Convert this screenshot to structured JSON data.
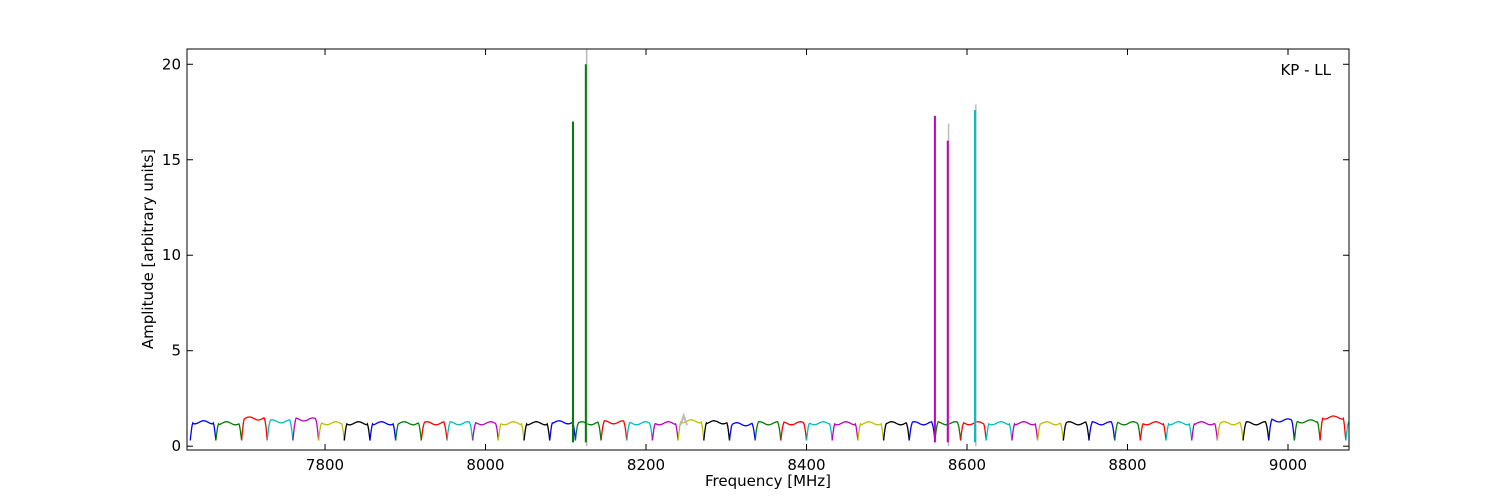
{
  "chart_data": {
    "type": "line",
    "title": "",
    "annotation": "KP - LL",
    "xlabel": "Frequency [MHz]",
    "ylabel": "Amplitude [arbitrary units]",
    "xlim": [
      7628,
      9076
    ],
    "ylim": [
      -0.2,
      20.8
    ],
    "xticks": [
      7800,
      8000,
      8200,
      8400,
      8600,
      8800,
      9000
    ],
    "yticks": [
      0,
      5,
      10,
      15,
      20
    ],
    "grid": false,
    "legend": "none",
    "channel_width_mhz": 32,
    "channel_start_mhz": 7632,
    "channel_colors": [
      "#0000ff",
      "#008000",
      "#ff0000",
      "#00bfbf",
      "#bf00bf",
      "#bfbf00",
      "#000000"
    ],
    "channel_peaks": [
      1.25,
      1.2,
      1.45,
      1.3,
      1.4,
      1.2,
      1.2,
      1.2,
      1.2,
      1.2,
      1.2,
      1.2,
      1.2,
      1.2,
      1.25,
      1.2,
      1.25,
      1.2,
      1.2,
      1.3,
      1.25,
      1.15,
      1.2,
      1.2,
      1.2,
      1.2,
      1.2,
      1.2,
      1.2,
      1.2,
      1.2,
      1.2,
      1.2,
      1.2,
      1.2,
      1.2,
      1.2,
      1.2,
      1.2,
      1.2,
      1.2,
      1.2,
      1.35,
      1.3,
      1.5,
      1.25
    ],
    "shadow_color": "#bbbbbb",
    "spikes": [
      {
        "x": 8109,
        "y": 17.0,
        "color": "#008000"
      },
      {
        "x": 8125,
        "y": 20.0,
        "color": "#008000",
        "shadow_y": 20.8
      },
      {
        "x": 8560,
        "y": 17.3,
        "color": "#bf00bf"
      },
      {
        "x": 8576,
        "y": 16.0,
        "color": "#bf00bf",
        "shadow_y": 16.9
      },
      {
        "x": 8610,
        "y": 17.6,
        "color": "#00bfbf",
        "shadow_y": 17.9
      }
    ],
    "shadow_bumps": [
      {
        "x": 8247,
        "y": 1.6
      }
    ]
  }
}
